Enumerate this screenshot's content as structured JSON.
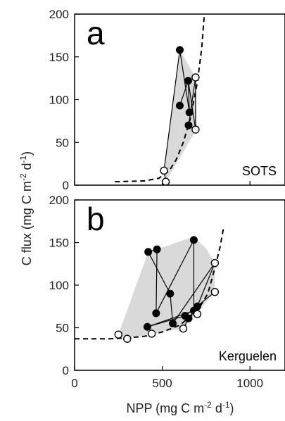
{
  "figure": {
    "y_label_main": "C flux (mg C m",
    "y_label_sup1": "-2",
    "y_label_mid": " d",
    "y_label_sup2": "-1",
    "y_label_end": ")",
    "x_label_main": "NPP (mg C m",
    "x_label_sup1": "-2",
    "x_label_mid": " d",
    "x_label_sup2": "-1",
    "x_label_end": ")"
  },
  "chart_data": [
    {
      "type": "scatter",
      "panel": "a",
      "site": "SOTS",
      "xlim": [
        0,
        1200
      ],
      "ylim": [
        0,
        200
      ],
      "x_ticks": [
        0,
        500,
        1000
      ],
      "y_ticks": [
        0,
        50,
        100,
        150,
        200
      ],
      "x_tick_labels": [
        "",
        "",
        ""
      ],
      "y_tick_labels": [
        "0",
        "50",
        "100",
        "150",
        "200"
      ],
      "fit_curve": [
        [
          230,
          4
        ],
        [
          400,
          5
        ],
        [
          480,
          8
        ],
        [
          540,
          17
        ],
        [
          580,
          30
        ],
        [
          620,
          50
        ],
        [
          660,
          78
        ],
        [
          700,
          120
        ],
        [
          725,
          160
        ],
        [
          740,
          200
        ]
      ],
      "hull": [
        [
          520,
          4
        ],
        [
          510,
          17
        ],
        [
          600,
          158
        ],
        [
          690,
          126
        ],
        [
          695,
          65
        ]
      ],
      "filled_points": [
        [
          600,
          158
        ],
        [
          600,
          93
        ],
        [
          648,
          122
        ],
        [
          655,
          85
        ],
        [
          650,
          70
        ]
      ],
      "open_points": [
        [
          520,
          4
        ],
        [
          510,
          17
        ],
        [
          690,
          126
        ],
        [
          690,
          65
        ]
      ],
      "segments": [
        [
          [
            600,
            158
          ],
          [
            510,
            17
          ]
        ],
        [
          [
            600,
            158
          ],
          [
            655,
            85
          ]
        ],
        [
          [
            600,
            93
          ],
          [
            648,
            122
          ]
        ],
        [
          [
            648,
            122
          ],
          [
            655,
            85
          ]
        ],
        [
          [
            648,
            122
          ],
          [
            690,
            65
          ]
        ],
        [
          [
            690,
            126
          ],
          [
            650,
            70
          ]
        ],
        [
          [
            690,
            126
          ],
          [
            690,
            65
          ]
        ],
        [
          [
            510,
            17
          ],
          [
            520,
            4
          ]
        ],
        [
          [
            650,
            70
          ],
          [
            690,
            65
          ]
        ]
      ]
    },
    {
      "type": "scatter",
      "panel": "b",
      "site": "Kerguelen",
      "xlim": [
        0,
        1200
      ],
      "ylim": [
        0,
        200
      ],
      "x_ticks": [
        0,
        500,
        1000
      ],
      "y_ticks": [
        0,
        50,
        100,
        150,
        200
      ],
      "x_tick_labels": [
        "0",
        "500",
        "1000"
      ],
      "y_tick_labels": [
        "0",
        "50",
        "100",
        "150",
        "200"
      ],
      "fit_curve": [
        [
          0,
          37
        ],
        [
          200,
          37
        ],
        [
          300,
          38
        ],
        [
          400,
          40
        ],
        [
          500,
          45
        ],
        [
          600,
          53
        ],
        [
          700,
          70
        ],
        [
          760,
          90
        ],
        [
          800,
          120
        ],
        [
          830,
          145
        ],
        [
          850,
          168
        ]
      ],
      "hull": [
        [
          250,
          42
        ],
        [
          300,
          37
        ],
        [
          440,
          43
        ],
        [
          620,
          49
        ],
        [
          800,
          92
        ],
        [
          800,
          126
        ],
        [
          750,
          143
        ],
        [
          680,
          157
        ],
        [
          470,
          142
        ],
        [
          420,
          139
        ]
      ],
      "filled_points": [
        [
          420,
          139
        ],
        [
          470,
          142
        ],
        [
          545,
          90
        ],
        [
          465,
          67
        ],
        [
          415,
          51
        ],
        [
          560,
          55
        ],
        [
          630,
          64
        ],
        [
          650,
          61
        ],
        [
          680,
          70
        ],
        [
          700,
          75
        ],
        [
          680,
          153
        ]
      ],
      "open_points": [
        [
          250,
          42
        ],
        [
          300,
          37
        ],
        [
          440,
          43
        ],
        [
          620,
          49
        ],
        [
          700,
          66
        ],
        [
          800,
          92
        ],
        [
          800,
          126
        ]
      ],
      "segments": [
        [
          [
            420,
            139
          ],
          [
            470,
            142
          ]
        ],
        [
          [
            420,
            139
          ],
          [
            545,
            90
          ]
        ],
        [
          [
            470,
            142
          ],
          [
            465,
            67
          ]
        ],
        [
          [
            680,
            153
          ],
          [
            465,
            67
          ]
        ],
        [
          [
            545,
            90
          ],
          [
            560,
            55
          ]
        ],
        [
          [
            415,
            51
          ],
          [
            630,
            64
          ]
        ],
        [
          [
            415,
            51
          ],
          [
            680,
            70
          ]
        ],
        [
          [
            680,
            153
          ],
          [
            680,
            70
          ]
        ],
        [
          [
            680,
            70
          ],
          [
            700,
            66
          ]
        ],
        [
          [
            560,
            55
          ],
          [
            800,
            126
          ]
        ],
        [
          [
            630,
            64
          ],
          [
            800,
            92
          ]
        ],
        [
          [
            650,
            61
          ],
          [
            620,
            49
          ]
        ],
        [
          [
            700,
            75
          ],
          [
            800,
            126
          ]
        ],
        [
          [
            650,
            61
          ],
          [
            700,
            75
          ]
        ]
      ]
    }
  ]
}
